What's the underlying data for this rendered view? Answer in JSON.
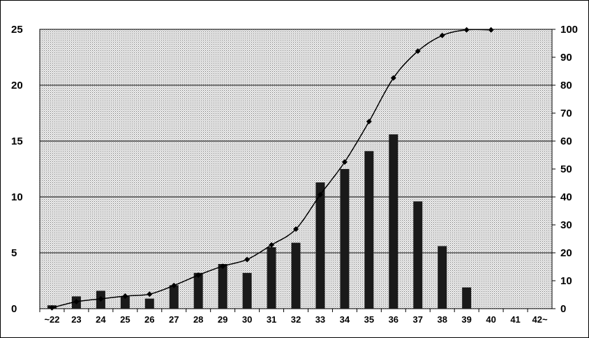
{
  "chart_data": {
    "type": "bar",
    "title": "",
    "xlabel": "",
    "ylabel": "",
    "categories": [
      "~22",
      "23",
      "24",
      "25",
      "26",
      "27",
      "28",
      "29",
      "30",
      "31",
      "32",
      "33",
      "34",
      "35",
      "36",
      "37",
      "38",
      "39",
      "40",
      "41",
      "42~"
    ],
    "series": [
      {
        "type": "bar",
        "axis": "left",
        "values": [
          0.3,
          1.1,
          1.6,
          1.1,
          0.9,
          2.1,
          3.2,
          4.0,
          3.2,
          5.5,
          5.9,
          11.3,
          12.5,
          14.1,
          15.6,
          9.6,
          5.6,
          1.9,
          0,
          0,
          0
        ]
      },
      {
        "type": "line",
        "axis": "right",
        "values": [
          0.3,
          2.5,
          3.5,
          4.5,
          5.2,
          8.3,
          12.0,
          15.2,
          17.6,
          22.8,
          28.5,
          40.8,
          52.5,
          67.0,
          82.6,
          92.2,
          97.8,
          99.8,
          99.8,
          null,
          null
        ]
      }
    ],
    "y_left": {
      "min": 0,
      "max": 25,
      "ticks": [
        0,
        5,
        10,
        15,
        20,
        25
      ]
    },
    "y_right": {
      "min": 0,
      "max": 100,
      "ticks": [
        0,
        10,
        20,
        30,
        40,
        50,
        60,
        70,
        80,
        90,
        100
      ]
    },
    "grid": true,
    "bar_color": "#1a1a1a",
    "line_color": "#000000",
    "plot_background": "#d9d9d9"
  }
}
